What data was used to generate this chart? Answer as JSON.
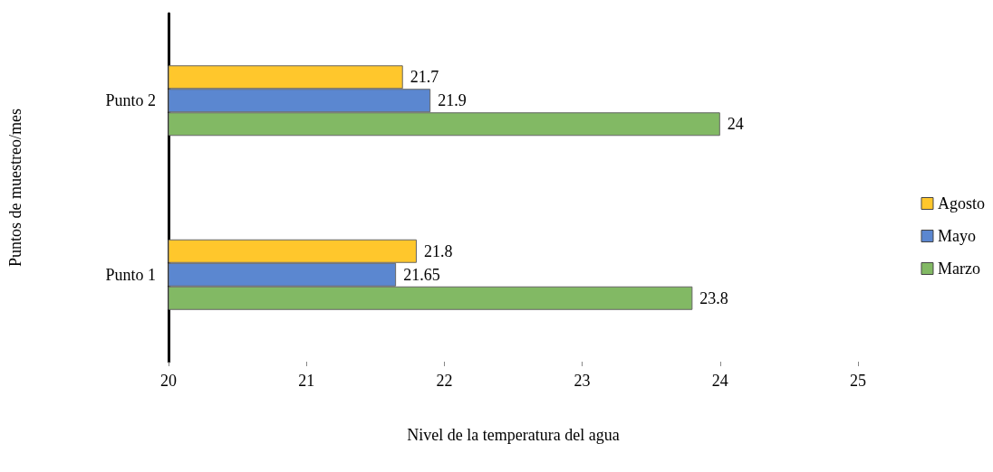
{
  "chart_data": {
    "type": "bar",
    "orientation": "horizontal",
    "xlabel": "Nivel de la temperatura del agua",
    "ylabel": "Puntos de muestreo/mes",
    "categories": [
      "Punto 2",
      "Punto 1"
    ],
    "series": [
      {
        "name": "Agosto",
        "color": "#ffc72c",
        "values": [
          21.7,
          21.8
        ]
      },
      {
        "name": "Mayo",
        "color": "#5b87d0",
        "values": [
          21.9,
          21.65
        ]
      },
      {
        "name": "Marzo",
        "color": "#82b964",
        "values": [
          24,
          23.8
        ]
      }
    ],
    "xlim": [
      20,
      25
    ],
    "xticks": [
      20,
      21,
      22,
      23,
      24,
      25
    ],
    "grid": false,
    "legend": "right",
    "data_labels": true
  }
}
